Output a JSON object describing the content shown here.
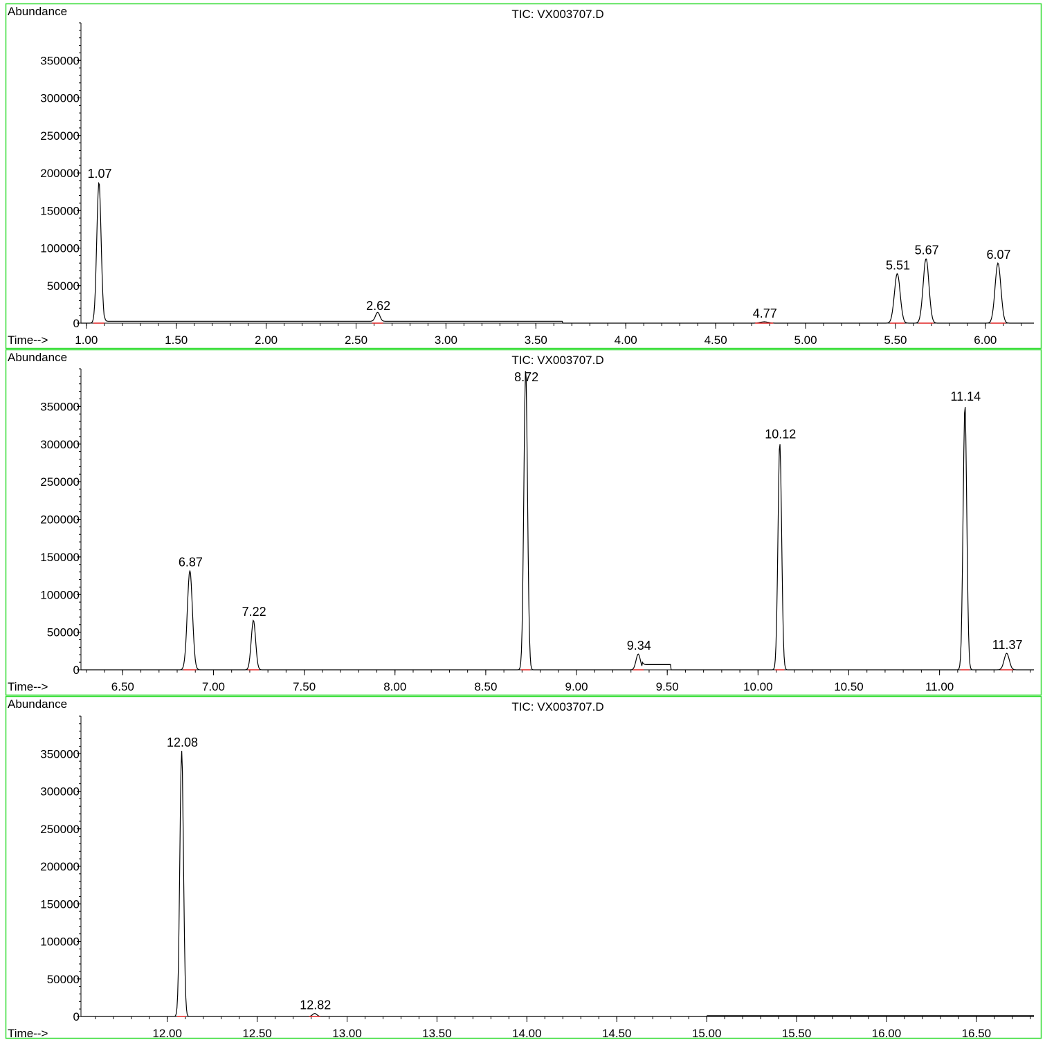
{
  "chart_data": [
    {
      "type": "line",
      "title": "TIC: VX003707.D",
      "ylabel": "Abundance",
      "xlabel": "Time-->",
      "xlim": [
        0.97,
        6.27
      ],
      "ylim": [
        0,
        400000
      ],
      "yticks": [
        0,
        50000,
        100000,
        150000,
        200000,
        250000,
        300000,
        350000
      ],
      "ytick_labels": [
        "0",
        "50000",
        "100000",
        "150000",
        "200000",
        "250000",
        "300000",
        "350000"
      ],
      "xticks": [
        1.0,
        1.5,
        2.0,
        2.5,
        3.0,
        3.5,
        4.0,
        4.5,
        5.0,
        5.5,
        6.0
      ],
      "xtick_labels": [
        "1.00",
        "1.50",
        "2.00",
        "2.50",
        "3.00",
        "3.50",
        "4.00",
        "4.50",
        "5.00",
        "5.50",
        "6.00"
      ],
      "peaks": [
        {
          "label": "1.07",
          "x": 1.07,
          "y": 188000,
          "width": 0.012
        },
        {
          "label": "2.62",
          "x": 2.62,
          "y": 12000,
          "width": 0.012
        },
        {
          "label": "4.77",
          "x": 4.77,
          "y": 1800,
          "width": 0.02
        },
        {
          "label": "5.51",
          "x": 5.51,
          "y": 66000,
          "width": 0.016
        },
        {
          "label": "5.67",
          "x": 5.67,
          "y": 86000,
          "width": 0.016
        },
        {
          "label": "6.07",
          "x": 6.07,
          "y": 80000,
          "width": 0.016
        }
      ]
    },
    {
      "type": "line",
      "title": "TIC: VX003707.D",
      "ylabel": "Abundance",
      "xlabel": "Time-->",
      "xlim": [
        6.27,
        11.52
      ],
      "ylim": [
        0,
        400000
      ],
      "yticks": [
        0,
        50000,
        100000,
        150000,
        200000,
        250000,
        300000,
        350000
      ],
      "ytick_labels": [
        "0",
        "50000",
        "100000",
        "150000",
        "200000",
        "250000",
        "300000",
        "350000"
      ],
      "xticks": [
        6.5,
        7.0,
        7.5,
        8.0,
        8.5,
        9.0,
        9.5,
        10.0,
        10.5,
        11.0
      ],
      "xtick_labels": [
        "6.50",
        "7.00",
        "7.50",
        "8.00",
        "8.50",
        "9.00",
        "9.50",
        "10.00",
        "10.50",
        "11.00"
      ],
      "peaks": [
        {
          "label": "6.87",
          "x": 6.87,
          "y": 132000,
          "width": 0.014
        },
        {
          "label": "7.22",
          "x": 7.22,
          "y": 66000,
          "width": 0.012
        },
        {
          "label": "8.72",
          "x": 8.72,
          "y": 400000,
          "width": 0.01
        },
        {
          "label": "9.34",
          "x": 9.34,
          "y": 21000,
          "width": 0.012
        },
        {
          "label": "10.12",
          "x": 10.12,
          "y": 302000,
          "width": 0.01
        },
        {
          "label": "11.14",
          "x": 11.14,
          "y": 352000,
          "width": 0.01
        },
        {
          "label": "11.37",
          "x": 11.37,
          "y": 22000,
          "width": 0.014
        }
      ]
    },
    {
      "type": "line",
      "title": "TIC: VX003707.D",
      "ylabel": "Abundance",
      "xlabel": "Time-->",
      "xlim": [
        11.52,
        16.82
      ],
      "ylim": [
        0,
        400000
      ],
      "yticks": [
        0,
        50000,
        100000,
        150000,
        200000,
        250000,
        300000,
        350000
      ],
      "ytick_labels": [
        "0",
        "50000",
        "100000",
        "150000",
        "200000",
        "250000",
        "300000",
        "350000"
      ],
      "xticks": [
        12.0,
        12.5,
        13.0,
        13.5,
        14.0,
        14.5,
        15.0,
        15.5,
        16.0,
        16.5
      ],
      "xtick_labels": [
        "12.00",
        "12.50",
        "13.00",
        "13.50",
        "14.00",
        "14.50",
        "15.00",
        "15.50",
        "16.00",
        "16.50"
      ],
      "peaks": [
        {
          "label": "12.08",
          "x": 12.08,
          "y": 354000,
          "width": 0.01
        },
        {
          "label": "12.82",
          "x": 12.82,
          "y": 4000,
          "width": 0.012
        }
      ]
    }
  ]
}
